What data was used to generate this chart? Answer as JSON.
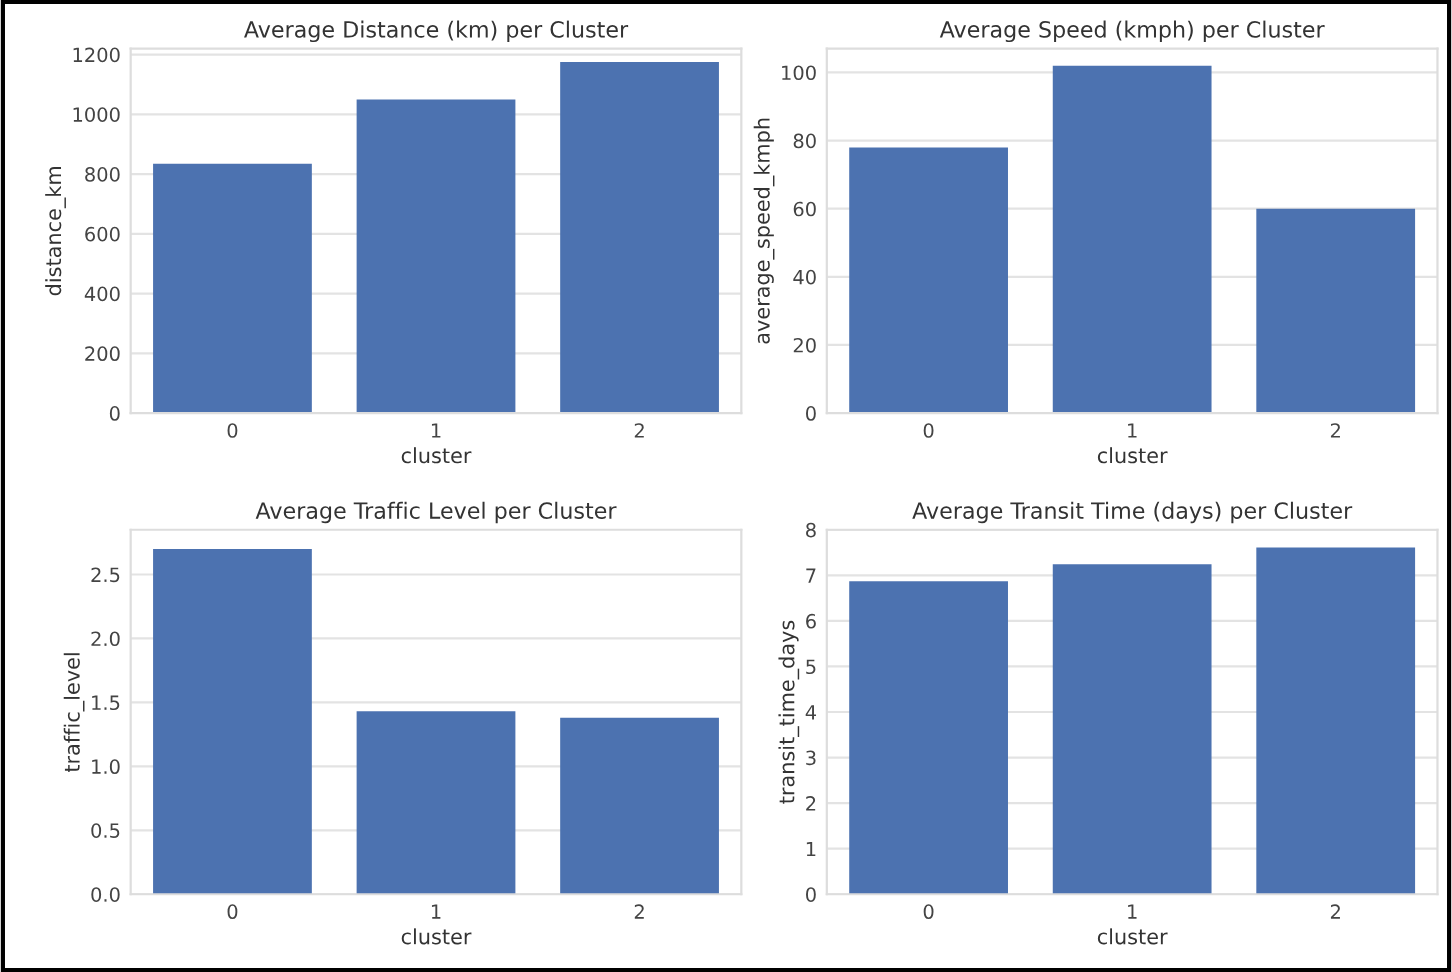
{
  "chart_data": [
    {
      "type": "bar",
      "title": "Average Distance (km) per Cluster",
      "xlabel": "cluster",
      "ylabel": "distance_km",
      "categories": [
        "0",
        "1",
        "2"
      ],
      "values": [
        835,
        1050,
        1175
      ],
      "color": "#4c72b0",
      "ylim": [
        0,
        1220
      ],
      "yticks": [
        0,
        200,
        400,
        600,
        800,
        1000,
        1200
      ],
      "grid": "y"
    },
    {
      "type": "bar",
      "title": "Average Speed (kmph) per Cluster",
      "xlabel": "cluster",
      "ylabel": "average_speed_kmph",
      "categories": [
        "0",
        "1",
        "2"
      ],
      "values": [
        78,
        102,
        60
      ],
      "color": "#4c72b0",
      "ylim": [
        0,
        107
      ],
      "yticks": [
        0,
        20,
        40,
        60,
        80,
        100
      ],
      "grid": "y"
    },
    {
      "type": "bar",
      "title": "Average Traffic Level per Cluster",
      "xlabel": "cluster",
      "ylabel": "traffic_level",
      "categories": [
        "0",
        "1",
        "2"
      ],
      "values": [
        2.7,
        1.43,
        1.38
      ],
      "color": "#4c72b0",
      "ylim": [
        0,
        2.85
      ],
      "yticks": [
        {
          "value": 0,
          "label": "0.0"
        },
        0.5,
        {
          "value": 1,
          "label": "1.0"
        },
        1.5,
        {
          "value": 2,
          "label": "2.0"
        },
        2.5
      ],
      "grid": "y"
    },
    {
      "type": "bar",
      "title": "Average Transit Time (days) per Cluster",
      "xlabel": "cluster",
      "ylabel": "transit_time_days",
      "categories": [
        "0",
        "1",
        "2"
      ],
      "values": [
        6.87,
        7.24,
        7.61
      ],
      "color": "#4c72b0",
      "ylim": [
        0,
        8
      ],
      "yticks": [
        0,
        1,
        2,
        3,
        4,
        5,
        6,
        7,
        8
      ],
      "grid": "y"
    }
  ]
}
